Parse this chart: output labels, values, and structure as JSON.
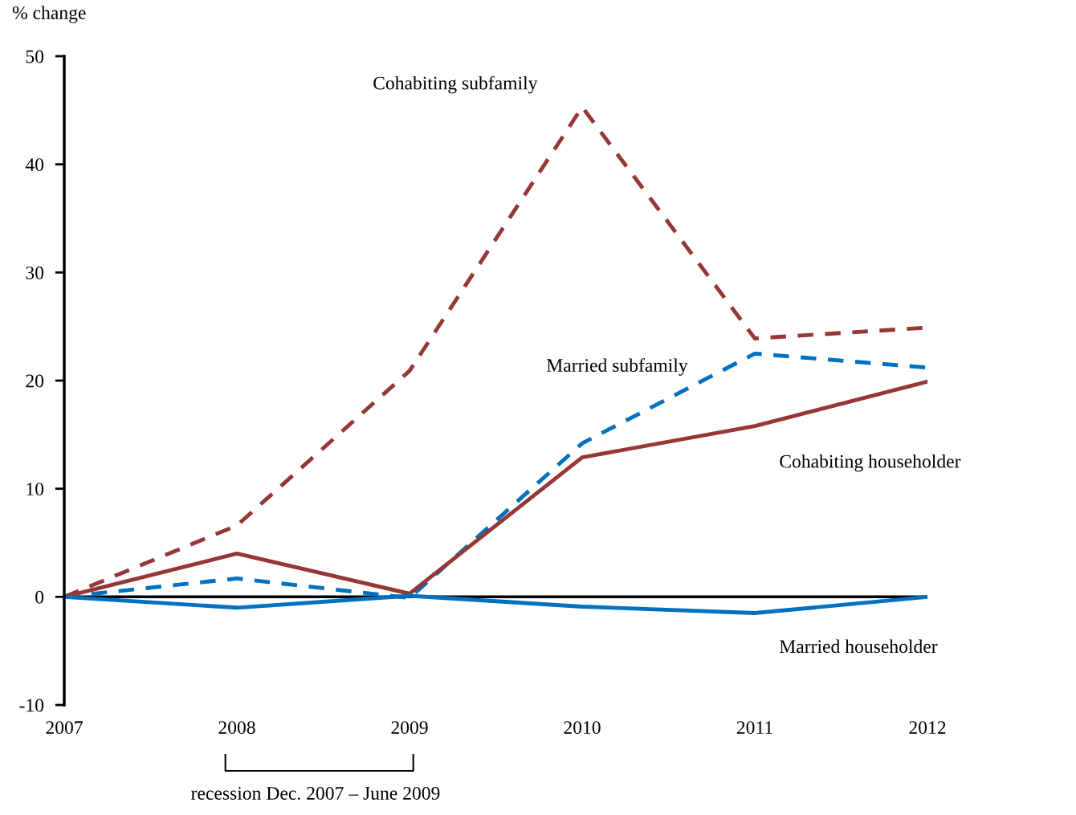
{
  "chart_data": {
    "type": "line",
    "ylabel": "% change",
    "x": [
      2007,
      2008,
      2009,
      2010,
      2011,
      2012
    ],
    "xlim": [
      2007,
      2012
    ],
    "xticks": [
      2007,
      2008,
      2009,
      2010,
      2011,
      2012
    ],
    "ylim": [
      -10,
      50
    ],
    "yticks": [
      -10,
      0,
      10,
      20,
      30,
      40,
      50
    ],
    "series": [
      {
        "name": "Cohabiting subfamily",
        "color": "#953735",
        "line_style": "dashed",
        "values": [
          0,
          6.6,
          20.9,
          45.3,
          23.9,
          24.9
        ]
      },
      {
        "name": "Married subfamily",
        "color": "#0070c0",
        "line_style": "dashed",
        "values": [
          0,
          1.7,
          -0.1,
          14.2,
          22.5,
          21.2
        ]
      },
      {
        "name": "Cohabiting householder",
        "color": "#953735",
        "line_style": "solid",
        "values": [
          0,
          4.0,
          0.3,
          12.9,
          15.8,
          19.9
        ]
      },
      {
        "name": "Married householder",
        "color": "#0070c0",
        "line_style": "solid",
        "values": [
          0,
          -1.0,
          0.1,
          -0.9,
          -1.5,
          0
        ]
      }
    ],
    "ref_lines": [
      {
        "axis": "y",
        "value": 0,
        "color": "#000000"
      }
    ],
    "annotations": [
      "recession Dec. 2007 – June 2009"
    ],
    "grid": false,
    "marker": "none"
  }
}
